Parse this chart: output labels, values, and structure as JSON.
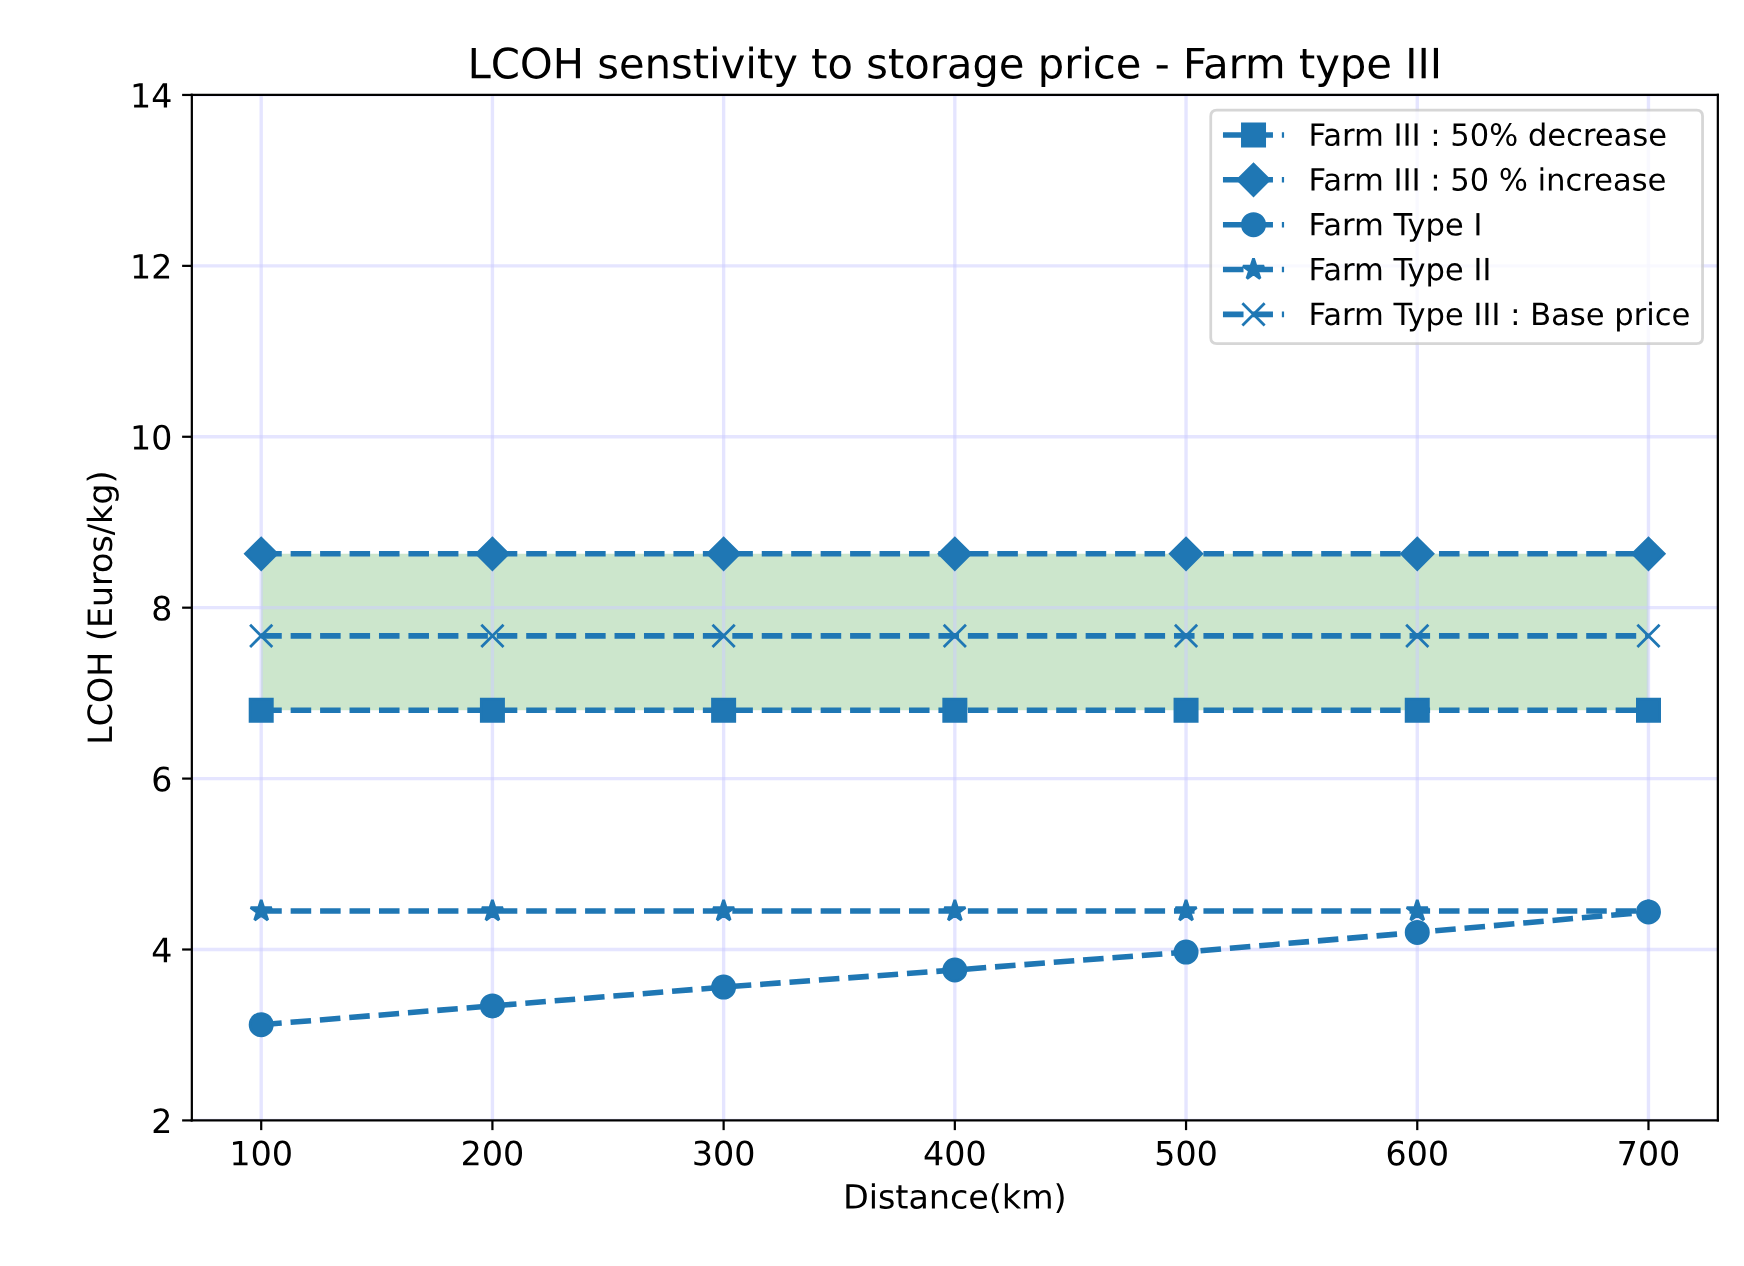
{
  "chart_data": {
    "type": "line",
    "title": "LCOH senstivity to storage price - Farm type III",
    "xlabel": "Distance(km)",
    "ylabel": "LCOH (Euros/kg)",
    "x": [
      100,
      200,
      300,
      400,
      500,
      600,
      700
    ],
    "series": [
      {
        "name": "Farm III : 50% decrease",
        "color": "#1f77b4",
        "marker": "square",
        "values": [
          6.8,
          6.8,
          6.8,
          6.8,
          6.8,
          6.8,
          6.8
        ]
      },
      {
        "name": "Farm III : 50 % increase",
        "color": "#1f77b4",
        "marker": "diamond",
        "values": [
          8.63,
          8.63,
          8.63,
          8.63,
          8.63,
          8.63,
          8.63
        ]
      },
      {
        "name": "Farm Type I",
        "color": "#1f77b4",
        "marker": "circle",
        "values": [
          3.12,
          3.34,
          3.56,
          3.76,
          3.97,
          4.2,
          4.44
        ]
      },
      {
        "name": "Farm Type II",
        "color": "#1f77b4",
        "marker": "star",
        "values": [
          4.45,
          4.45,
          4.45,
          4.45,
          4.45,
          4.45,
          4.45
        ]
      },
      {
        "name": "Farm Type III : Base price",
        "color": "#1f77b4",
        "marker": "cross",
        "values": [
          7.67,
          7.67,
          7.67,
          7.67,
          7.67,
          7.67,
          7.67
        ],
        "lower": [
          6.8,
          6.8,
          6.8,
          6.8,
          6.8,
          6.8,
          6.8
        ],
        "upper": [
          8.63,
          8.63,
          8.63,
          8.63,
          8.63,
          8.63,
          8.63
        ]
      }
    ],
    "xlim": [
      70,
      730
    ],
    "ylim": [
      2,
      14
    ],
    "xticks": [
      100,
      200,
      300,
      400,
      500,
      600,
      700
    ],
    "yticks": [
      2,
      4,
      6,
      8,
      10,
      12,
      14
    ],
    "grid": true,
    "legend": "top right",
    "line_style": "dashed"
  }
}
